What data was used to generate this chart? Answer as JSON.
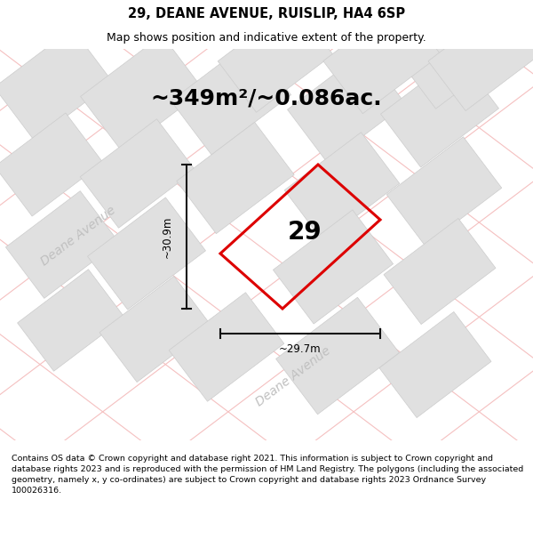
{
  "title": "29, DEANE AVENUE, RUISLIP, HA4 6SP",
  "subtitle": "Map shows position and indicative extent of the property.",
  "area_text": "~349m²/~0.086ac.",
  "number_label": "29",
  "dim_width": "~29.7m",
  "dim_height": "~30.9m",
  "street_label": "Deane Avenue",
  "footer": "Contains OS data © Crown copyright and database right 2021. This information is subject to Crown copyright and database rights 2023 and is reproduced with the permission of HM Land Registry. The polygons (including the associated geometry, namely x, y co-ordinates) are subject to Crown copyright and database rights 2023 Ordnance Survey 100026316.",
  "map_bg": "#f5f5f5",
  "property_color": "#dd0000",
  "building_fill": "#e0e0e0",
  "building_edge": "#cccccc",
  "street_line_color": "#f5c0c0",
  "dim_line_color": "#111111",
  "title_fontsize": 10.5,
  "subtitle_fontsize": 9,
  "area_fontsize": 18,
  "number_fontsize": 20,
  "footer_fontsize": 6.8,
  "street_label_fontsize": 10
}
